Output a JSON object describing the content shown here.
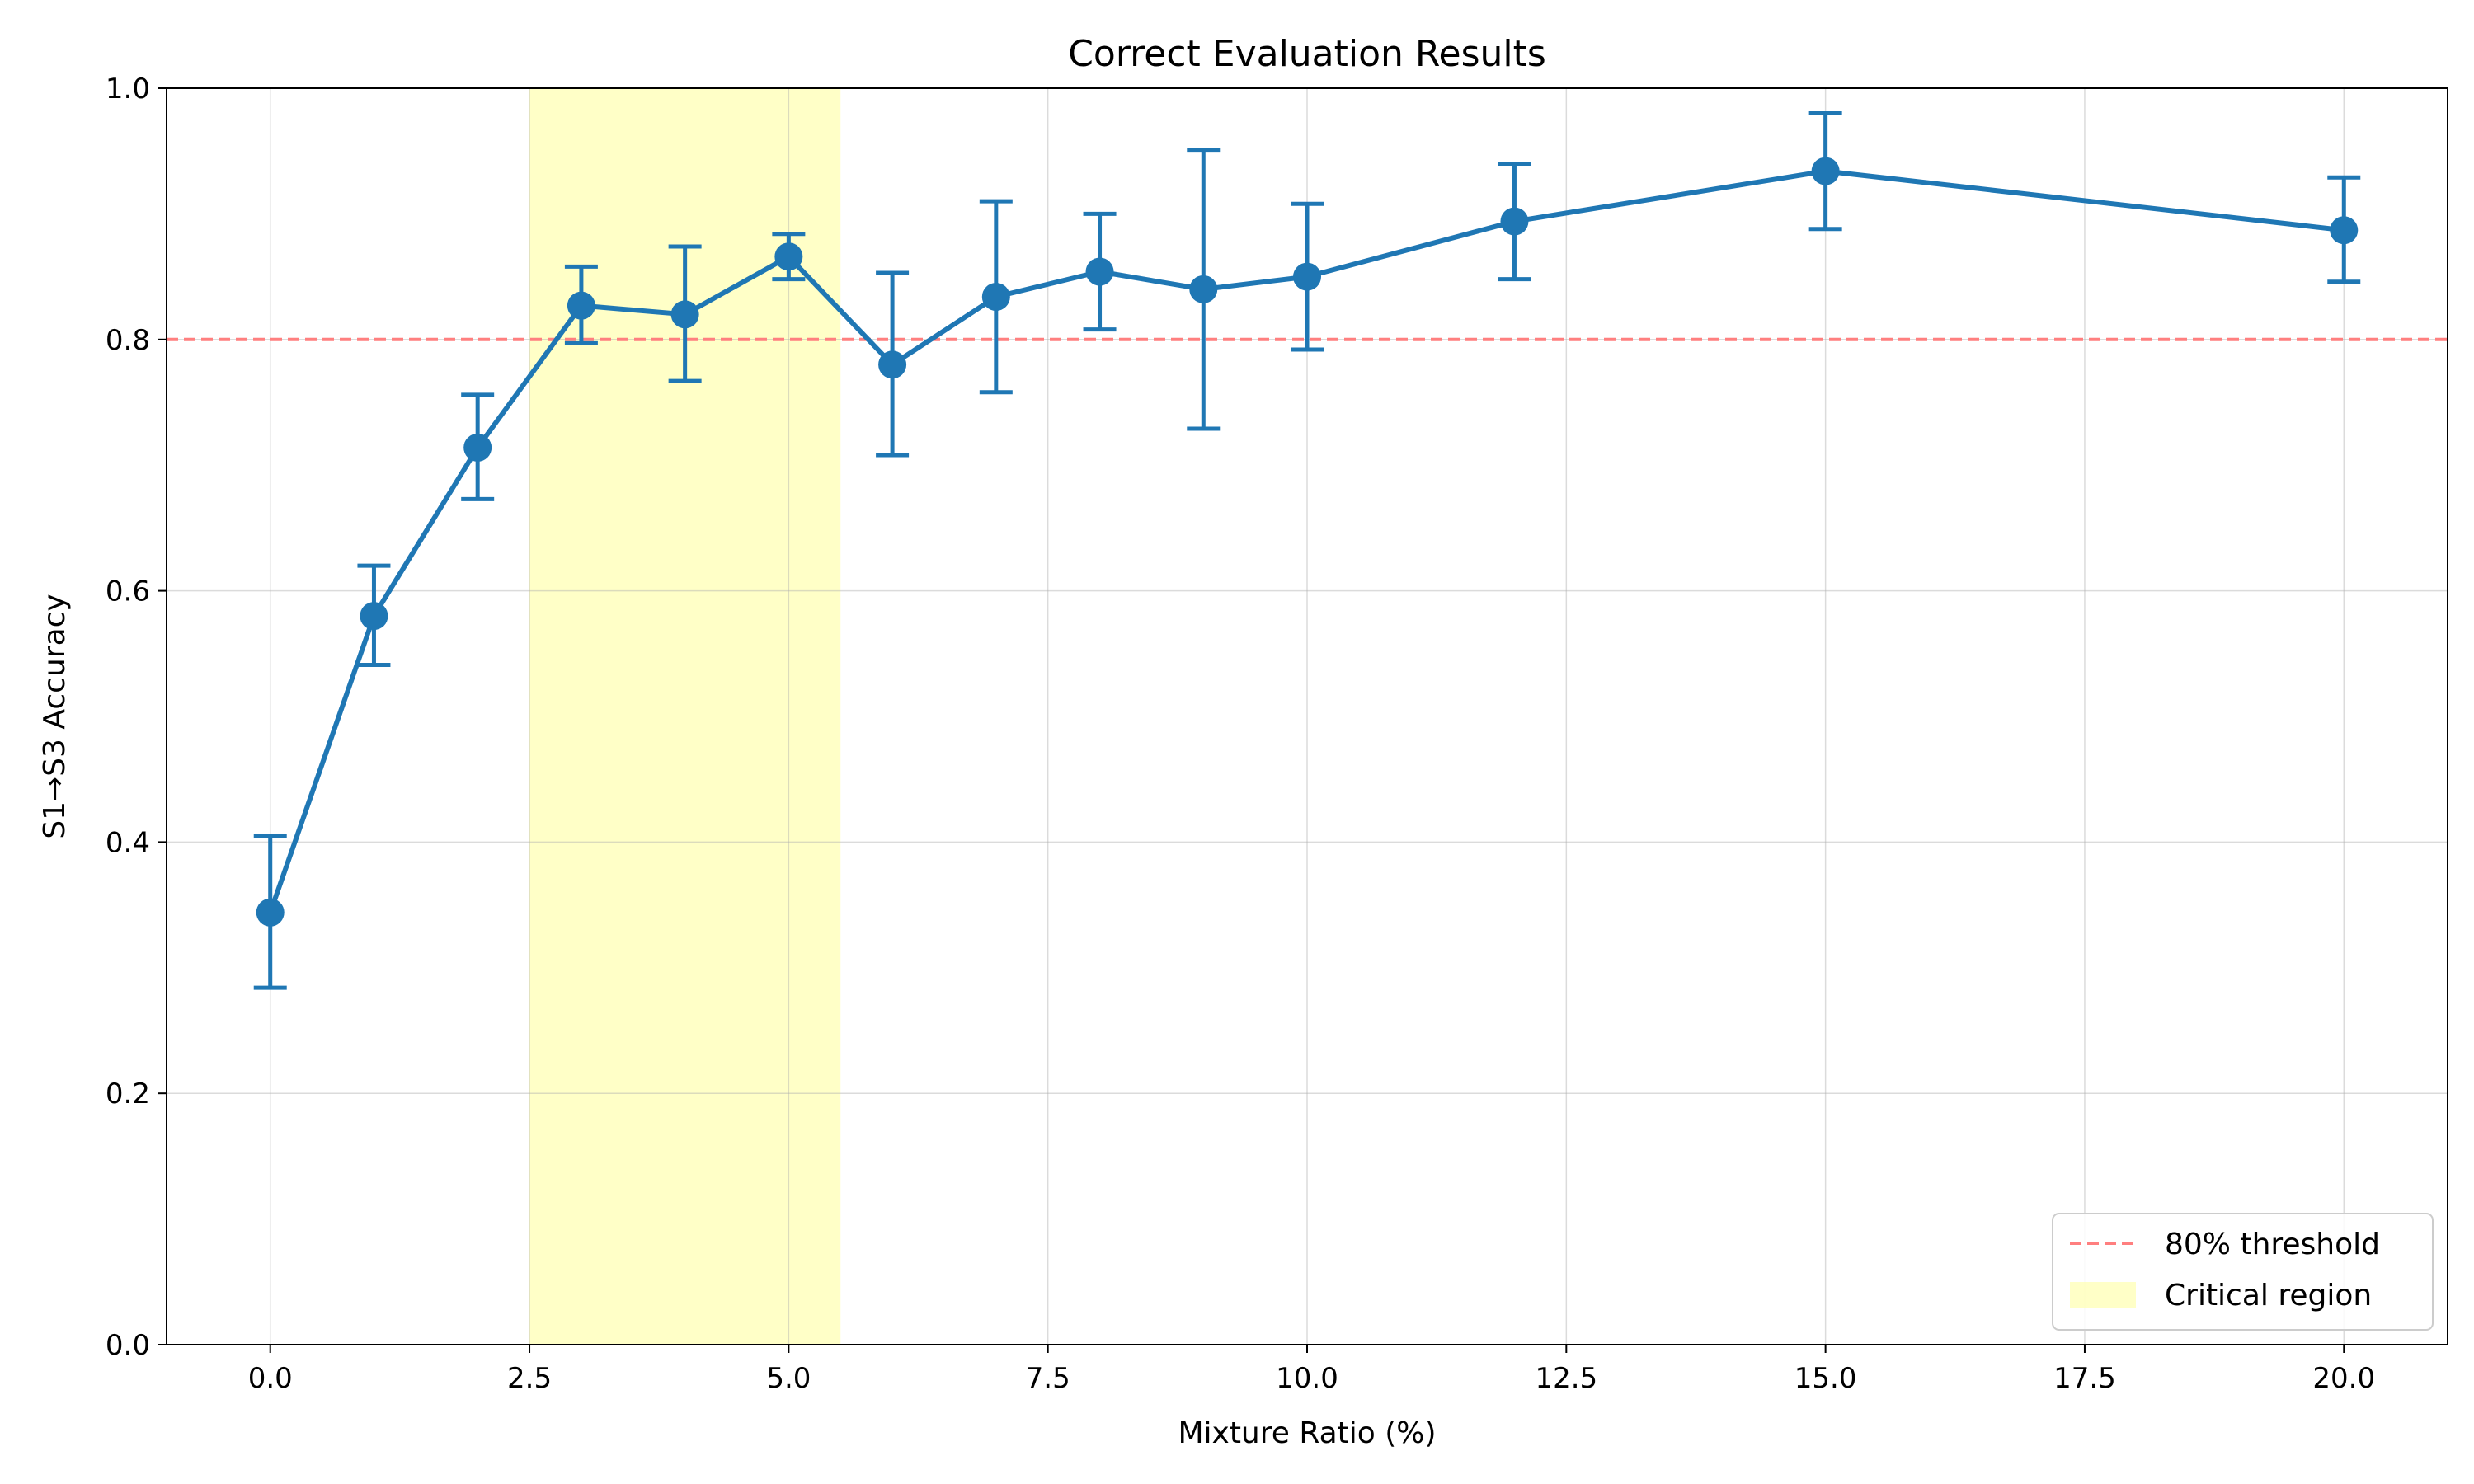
{
  "chart_data": {
    "type": "line",
    "title": "Correct Evaluation Results",
    "xlabel": "Mixture Ratio (%)",
    "ylabel": "S1→S3 Accuracy",
    "xlim": [
      -1.0,
      21.0
    ],
    "ylim": [
      0.0,
      1.0
    ],
    "xticks": [
      0.0,
      2.5,
      5.0,
      7.5,
      10.0,
      12.5,
      15.0,
      17.5,
      20.0
    ],
    "xtick_labels": [
      "0.0",
      "2.5",
      "5.0",
      "7.5",
      "10.0",
      "12.5",
      "15.0",
      "17.5",
      "20.0"
    ],
    "yticks": [
      0.0,
      0.2,
      0.4,
      0.6,
      0.8,
      1.0
    ],
    "ytick_labels": [
      "0.0",
      "0.2",
      "0.4",
      "0.6",
      "0.8",
      "1.0"
    ],
    "grid": true,
    "series": [
      {
        "x": [
          0,
          1,
          2,
          3,
          4,
          5,
          6,
          7,
          8,
          9,
          10,
          12,
          15,
          20
        ],
        "y": [
          0.344,
          0.58,
          0.714,
          0.827,
          0.82,
          0.866,
          0.78,
          0.834,
          0.854,
          0.84,
          0.85,
          0.894,
          0.934,
          0.887
        ],
        "err_low": [
          0.284,
          0.541,
          0.673,
          0.797,
          0.767,
          0.848,
          0.708,
          0.758,
          0.808,
          0.729,
          0.792,
          0.848,
          0.888,
          0.846
        ],
        "err_high": [
          0.405,
          0.62,
          0.756,
          0.858,
          0.874,
          0.884,
          0.853,
          0.91,
          0.9,
          0.951,
          0.908,
          0.94,
          0.98,
          0.929
        ],
        "color": "#1f77b4"
      }
    ],
    "threshold": {
      "name": "80% threshold",
      "y": 0.8,
      "color": "#ff7f7f",
      "style": "dashed"
    },
    "shaded_region": {
      "name": "Critical region",
      "x_start": 2.5,
      "x_end": 5.5,
      "color": "#ffff99"
    },
    "legend_position": "lower-right"
  }
}
